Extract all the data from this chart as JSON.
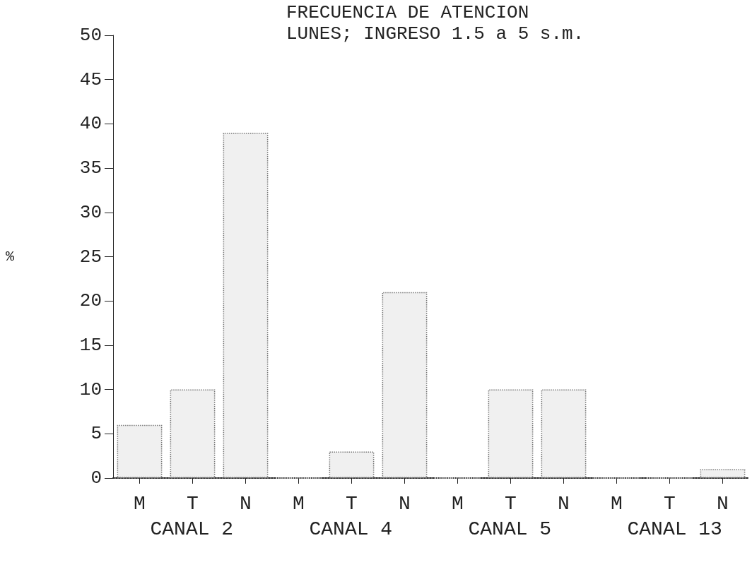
{
  "chart_data": {
    "type": "bar",
    "title": "FRECUENCIA DE ATENCION",
    "subtitle": "LUNES; INGRESO 1.5 a 5 s.m.",
    "ylabel": "%",
    "categories": [
      "M",
      "T",
      "N",
      "M",
      "T",
      "N",
      "M",
      "T",
      "N",
      "M",
      "T",
      "N"
    ],
    "values": [
      6,
      10,
      39,
      0,
      3,
      21,
      0,
      10,
      10,
      0,
      0,
      1
    ],
    "color": "#f0f0f0",
    "annotations": [
      "CANAL 2",
      "CANAL 4",
      "CANAL 5",
      "CANAL 13"
    ],
    "ylim": [
      0,
      50
    ],
    "yticks": [
      0,
      5,
      10,
      15,
      20,
      25,
      30,
      35,
      40,
      45,
      50
    ],
    "grid": false
  }
}
